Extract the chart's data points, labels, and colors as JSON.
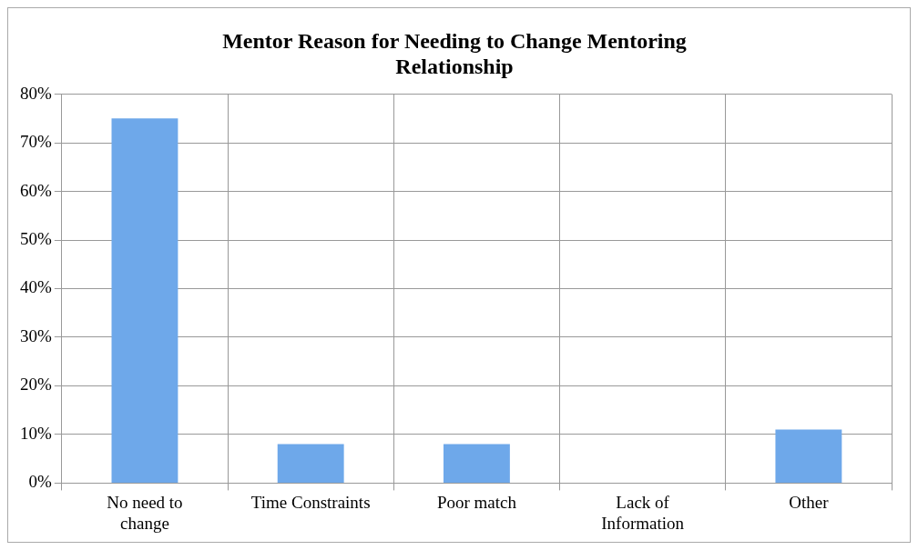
{
  "chart_data": {
    "type": "bar",
    "title": "Mentor Reason for Needing to Change Mentoring Relationship",
    "categories": [
      "No need to change",
      "Time Constraints",
      "Poor match",
      "Lack of Information",
      "Other"
    ],
    "values": [
      75,
      8,
      8,
      0,
      11
    ],
    "color": "#6ea8ea",
    "ylim": [
      0,
      80
    ],
    "yticks": [
      {
        "value": 0,
        "label": "0%"
      },
      {
        "value": 10,
        "label": "10%"
      },
      {
        "value": 20,
        "label": "20%"
      },
      {
        "value": 30,
        "label": "30%"
      },
      {
        "value": 40,
        "label": "40%"
      },
      {
        "value": 50,
        "label": "50%"
      },
      {
        "value": 60,
        "label": "60%"
      },
      {
        "value": 70,
        "label": "70%"
      },
      {
        "value": 80,
        "label": "80%"
      }
    ],
    "grid": true
  }
}
